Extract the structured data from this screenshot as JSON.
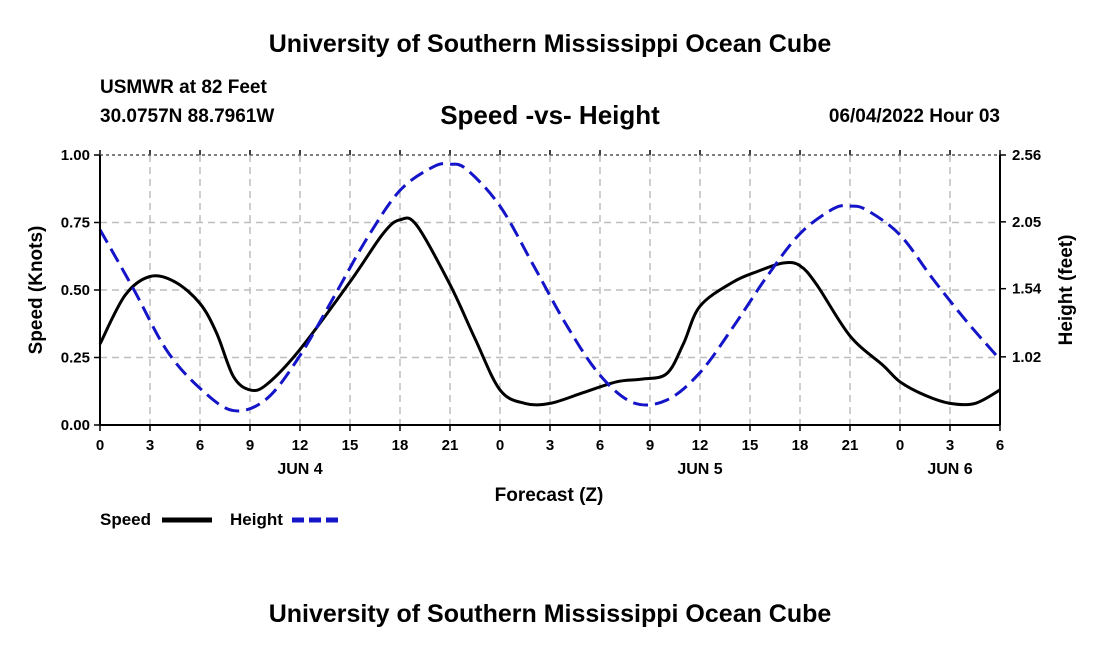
{
  "header": {
    "title": "University of Southern Mississippi Ocean Cube",
    "station": "USMWR at 82 Feet",
    "coords": "30.0757N  88.7961W",
    "date": "06/04/2022 Hour 03",
    "footer_title": "University of Southern Mississippi Ocean Cube"
  },
  "legend": {
    "speed_label": "Speed",
    "height_label": "Height"
  },
  "colors": {
    "speed": "#000000",
    "height": "#1414c8",
    "grid": "#bdbdbd"
  },
  "chart_data": {
    "type": "line",
    "title": "Speed -vs- Height",
    "xlabel": "Forecast (Z)",
    "ylabel": "Speed (Knots)",
    "y2label": "Height (feet)",
    "xlim": [
      0,
      54
    ],
    "ylim": [
      0,
      1.0
    ],
    "y2lim": [
      0.5,
      2.56
    ],
    "y_ticks": [
      "0.00",
      "0.25",
      "0.50",
      "0.75",
      "1.00"
    ],
    "y2_ticks": [
      "1.02",
      "1.54",
      "2.05",
      "2.56"
    ],
    "x_ticks": [
      "0",
      "3",
      "6",
      "9",
      "12",
      "15",
      "18",
      "21",
      "0",
      "3",
      "6",
      "9",
      "12",
      "15",
      "18",
      "21",
      "0",
      "3",
      "6"
    ],
    "date_labels": [
      {
        "label": "JUN 4",
        "x": 12
      },
      {
        "label": "JUN 5",
        "x": 36
      },
      {
        "label": "JUN 6",
        "x": 51
      }
    ],
    "grid": true,
    "series": [
      {
        "name": "Speed",
        "axis": "left",
        "x": [
          0,
          1.5,
          3,
          4.5,
          6,
          7,
          8,
          9,
          10,
          12,
          15,
          17,
          18,
          19,
          21,
          22.5,
          24,
          25.5,
          27,
          29,
          31,
          32.5,
          34,
          35,
          36,
          38,
          39.5,
          41,
          42,
          43,
          45,
          47,
          48,
          49.5,
          51,
          52.5,
          54
        ],
        "values": [
          0.3,
          0.48,
          0.55,
          0.53,
          0.45,
          0.34,
          0.18,
          0.13,
          0.15,
          0.28,
          0.53,
          0.71,
          0.76,
          0.74,
          0.52,
          0.32,
          0.13,
          0.08,
          0.08,
          0.12,
          0.16,
          0.17,
          0.19,
          0.3,
          0.44,
          0.53,
          0.57,
          0.6,
          0.59,
          0.52,
          0.33,
          0.22,
          0.16,
          0.11,
          0.08,
          0.08,
          0.13
        ]
      },
      {
        "name": "Height",
        "axis": "right",
        "x": [
          0,
          2,
          4,
          6,
          8,
          10,
          12,
          14,
          16,
          18,
          20,
          21,
          22,
          24,
          26,
          28,
          30,
          32,
          34,
          36,
          38,
          40,
          42,
          44,
          45,
          46,
          48,
          50,
          52,
          54
        ],
        "values": [
          1.99,
          1.54,
          1.07,
          0.78,
          0.61,
          0.7,
          1.03,
          1.47,
          1.92,
          2.29,
          2.47,
          2.49,
          2.45,
          2.17,
          1.72,
          1.26,
          0.88,
          0.67,
          0.69,
          0.9,
          1.25,
          1.63,
          1.96,
          2.15,
          2.17,
          2.14,
          1.95,
          1.61,
          1.29,
          1.0
        ]
      }
    ]
  }
}
